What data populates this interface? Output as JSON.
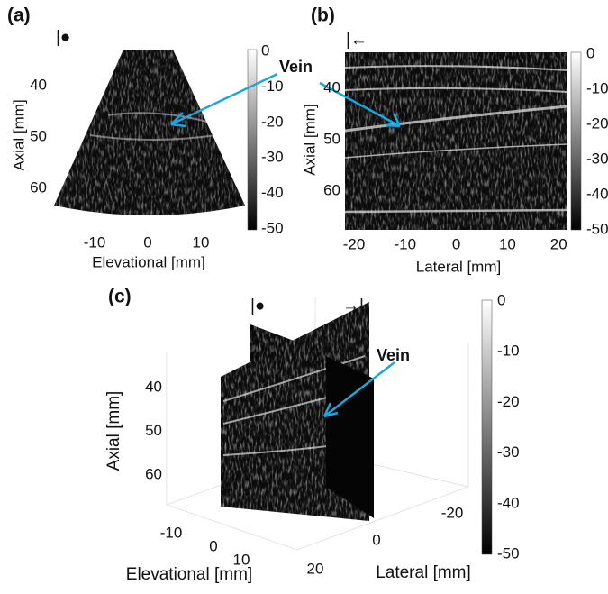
{
  "panels": [
    {
      "label": "(a)",
      "x_label": "Elevational [mm]",
      "y_label": "Axial [mm]",
      "xticks": [
        -10,
        0,
        10
      ],
      "yticks": [
        40,
        50,
        60
      ],
      "colorbar_ticks": [
        0,
        -10,
        -20,
        -30,
        -40,
        -50
      ]
    },
    {
      "label": "(b)",
      "x_label": "Lateral [mm]",
      "y_label": "Axial [mm]",
      "xticks": [
        -20,
        -10,
        0,
        10,
        20
      ],
      "yticks": [
        40,
        50,
        60
      ],
      "colorbar_ticks": [
        0,
        -10,
        -20,
        -30,
        -40,
        -50
      ]
    },
    {
      "label": "(c)",
      "x_label": "Elevational [mm]",
      "x2_label": "Lateral [mm]",
      "y_label": "Axial [mm]",
      "xticks": [
        -10,
        0,
        10,
        20
      ],
      "x2ticks": [
        -20,
        0
      ],
      "yticks": [
        40,
        50,
        60
      ],
      "colorbar_ticks": [
        0,
        -10,
        -20,
        -30,
        -40,
        -50
      ]
    }
  ],
  "annotation_top": "Vein",
  "annotation_bottom": "Vein"
}
